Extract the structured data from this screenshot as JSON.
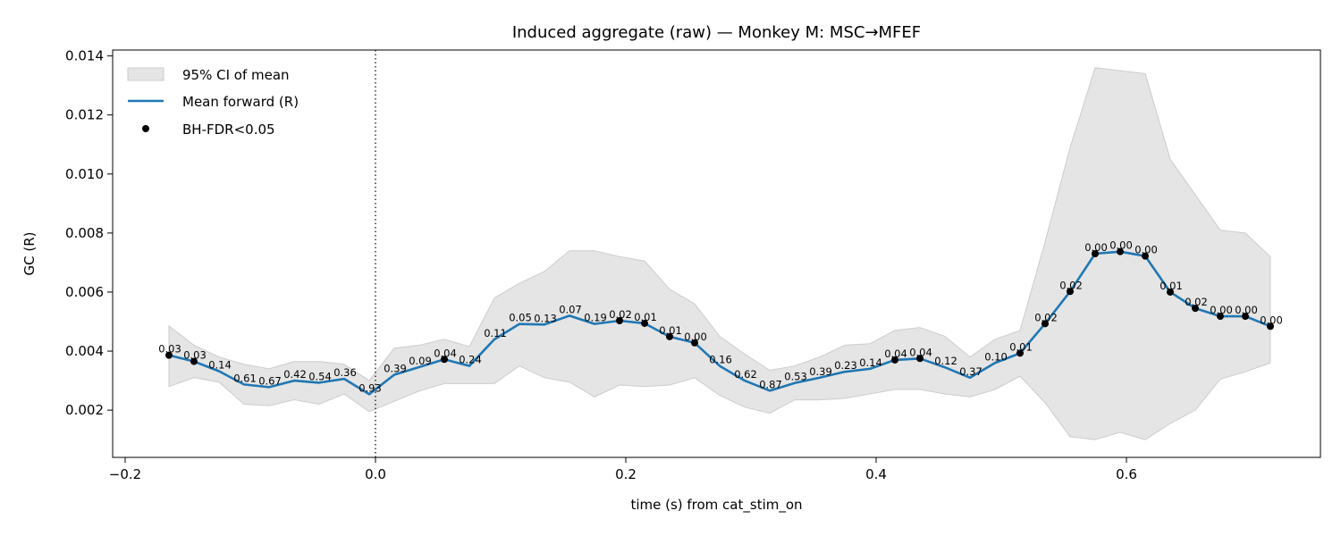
{
  "chart_data": {
    "type": "line",
    "title": "Induced aggregate (raw) — Monkey M: MSC→MFEF",
    "xlabel": "time (s) from cat_stim_on",
    "ylabel": "GC (R)",
    "xlim": [
      -0.21,
      0.755
    ],
    "ylim": [
      0.0004,
      0.0142
    ],
    "xticks": [
      -0.2,
      0.0,
      0.2,
      0.4,
      0.6
    ],
    "xtick_labels": [
      "−0.2",
      "0.0",
      "0.2",
      "0.4",
      "0.6"
    ],
    "yticks": [
      0.002,
      0.004,
      0.006,
      0.008,
      0.01,
      0.012,
      0.014
    ],
    "ytick_labels": [
      "0.002",
      "0.004",
      "0.006",
      "0.008",
      "0.010",
      "0.012",
      "0.014"
    ],
    "vline_x": 0.0,
    "legend_position": "upper-left",
    "legend": [
      {
        "label": "95% CI of mean",
        "kind": "band"
      },
      {
        "label": "Mean forward (R)",
        "kind": "line"
      },
      {
        "label": "BH-FDR<0.05",
        "kind": "marker"
      }
    ],
    "colors": {
      "mean_line": "#1f77b4",
      "ci_fill": "#e5e5e5",
      "ci_edge": "#cccccc",
      "marker": "#000000"
    },
    "x": [
      -0.165,
      -0.145,
      -0.125,
      -0.105,
      -0.085,
      -0.065,
      -0.045,
      -0.025,
      -0.005,
      0.015,
      0.035,
      0.055,
      0.075,
      0.095,
      0.115,
      0.135,
      0.155,
      0.175,
      0.195,
      0.215,
      0.235,
      0.255,
      0.275,
      0.295,
      0.315,
      0.335,
      0.355,
      0.375,
      0.395,
      0.415,
      0.435,
      0.455,
      0.475,
      0.495,
      0.515,
      0.535,
      0.555,
      0.575,
      0.595,
      0.615,
      0.635,
      0.655,
      0.675,
      0.695,
      0.715
    ],
    "mean": [
      0.00386,
      0.00365,
      0.00332,
      0.00287,
      0.00278,
      0.003,
      0.00293,
      0.00306,
      0.00254,
      0.0032,
      0.00346,
      0.00372,
      0.0035,
      0.0044,
      0.00492,
      0.0049,
      0.0052,
      0.00492,
      0.00503,
      0.00494,
      0.00449,
      0.00428,
      0.0035,
      0.003,
      0.00266,
      0.00292,
      0.0031,
      0.0033,
      0.0034,
      0.0037,
      0.00375,
      0.00345,
      0.0031,
      0.0036,
      0.00393,
      0.00493,
      0.00602,
      0.0073,
      0.00737,
      0.00722,
      0.006,
      0.00545,
      0.00518,
      0.00518,
      0.00484
    ],
    "ci_upper": [
      0.00485,
      0.0042,
      0.0038,
      0.00355,
      0.0034,
      0.00365,
      0.00365,
      0.00355,
      0.003,
      0.0041,
      0.0042,
      0.0044,
      0.00415,
      0.0058,
      0.0063,
      0.0067,
      0.0074,
      0.0074,
      0.0072,
      0.00705,
      0.0061,
      0.0056,
      0.0045,
      0.0039,
      0.00335,
      0.0035,
      0.0038,
      0.0042,
      0.00425,
      0.0047,
      0.0048,
      0.0045,
      0.0038,
      0.0044,
      0.0047,
      0.0077,
      0.0109,
      0.0136,
      0.0135,
      0.0134,
      0.0105,
      0.0093,
      0.0081,
      0.008,
      0.0072
    ],
    "ci_lower": [
      0.0028,
      0.0031,
      0.00295,
      0.0022,
      0.00215,
      0.00235,
      0.0022,
      0.00255,
      0.00195,
      0.0023,
      0.00265,
      0.0029,
      0.0029,
      0.0029,
      0.0035,
      0.0031,
      0.00295,
      0.00245,
      0.00285,
      0.0028,
      0.00285,
      0.0031,
      0.0025,
      0.0021,
      0.0019,
      0.00235,
      0.00235,
      0.0024,
      0.00255,
      0.0027,
      0.0027,
      0.00255,
      0.00245,
      0.0027,
      0.00315,
      0.00225,
      0.0011,
      0.001,
      0.00125,
      0.001,
      0.00155,
      0.002,
      0.00305,
      0.0033,
      0.0036
    ],
    "p_labels": [
      "0.03",
      "0.03",
      "0.14",
      "0.61",
      "0.67",
      "0.42",
      "0.54",
      "0.36",
      "0.93",
      "0.39",
      "0.09",
      "0.04",
      "0.24",
      "0.11",
      "0.05",
      "0.13",
      "0.07",
      "0.19",
      "0.02",
      "0.01",
      "0.01",
      "0.00",
      "0.16",
      "0.62",
      "0.87",
      "0.53",
      "0.39",
      "0.23",
      "0.14",
      "0.04",
      "0.04",
      "0.12",
      "0.37",
      "0.10",
      "0.01",
      "0.02",
      "0.02",
      "0.00",
      "0.00",
      "0.00",
      "0.01",
      "0.02",
      "0.00",
      "0.00",
      "0.00"
    ],
    "significant": [
      1,
      1,
      0,
      0,
      0,
      0,
      0,
      0,
      0,
      0,
      0,
      1,
      0,
      0,
      0,
      0,
      0,
      0,
      1,
      1,
      1,
      1,
      0,
      0,
      0,
      0,
      0,
      0,
      0,
      1,
      1,
      0,
      0,
      0,
      1,
      1,
      1,
      1,
      1,
      1,
      1,
      1,
      1,
      1,
      1
    ]
  }
}
